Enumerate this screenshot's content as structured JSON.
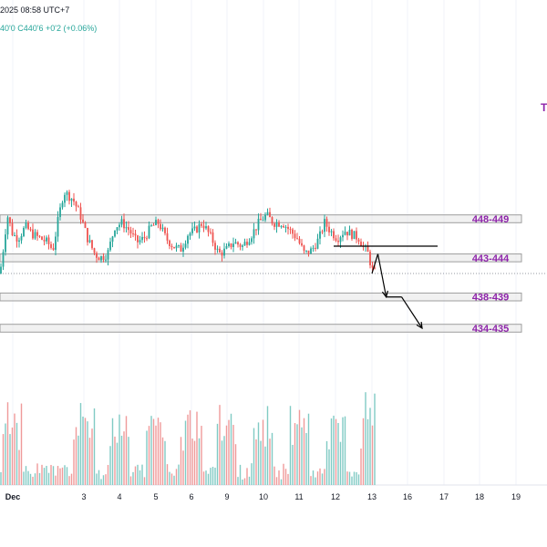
{
  "header": {
    "timestamp": "2025 08:58 UTC+7",
    "quote": "40'0  C440'6  +0'2 (+0.06%)"
  },
  "side_letter": "T",
  "chart_data": {
    "type": "candlestick",
    "title": "",
    "price_axis_visible": false,
    "y_range": [
      431,
      459
    ],
    "x_tick_labels": [
      "Dec",
      "3",
      "4",
      "5",
      "6",
      "9",
      "10",
      "11",
      "12",
      "13",
      "16",
      "17",
      "18",
      "19"
    ],
    "zones": [
      {
        "label": "448-449",
        "low": 448,
        "high": 449
      },
      {
        "label": "443-444",
        "low": 443,
        "high": 444
      },
      {
        "label": "438-439",
        "low": 438,
        "high": 439
      },
      {
        "label": "434-435",
        "low": 434,
        "high": 435
      }
    ],
    "last_price": 441.5,
    "resistance_line": 445.0,
    "projection_path": [
      {
        "date": "13",
        "price": 441.5
      },
      {
        "date": "13.5",
        "price": 444.0
      },
      {
        "date": "14.2",
        "price": 438.5
      },
      {
        "date": "15.5",
        "price": 438.5
      },
      {
        "date": "16.4",
        "price": 434.5
      }
    ],
    "colors": {
      "up": "#26a69a",
      "down": "#ef5350",
      "zone_label": "#8e24aa",
      "zone_fill": "#e8e8e8",
      "zone_border": "#9e9e9e"
    }
  }
}
